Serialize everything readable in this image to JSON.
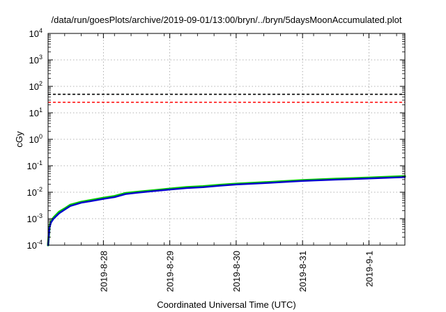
{
  "chart_data": {
    "type": "line",
    "title": "/data/run/goesPlots/archive/2019-09-01/13:00/bryn/../bryn/5daysMoonAccumulated.plot",
    "xlabel": "Coordinated Universal Time (UTC)",
    "ylabel": "cGy",
    "yscale": "log",
    "ylim": [
      0.0001,
      10000
    ],
    "xlim": [
      "2019-08-27T04:00",
      "2019-09-01T13:00"
    ],
    "grid": true,
    "legend": "none",
    "xticks": [
      {
        "x": "2019-08-28T00:00",
        "label": "2019-8-28"
      },
      {
        "x": "2019-08-29T00:00",
        "label": "2019-8-29"
      },
      {
        "x": "2019-08-30T00:00",
        "label": "2019-8-30"
      },
      {
        "x": "2019-08-31T00:00",
        "label": "2019-8-31"
      },
      {
        "x": "2019-09-01T00:00",
        "label": "2019-9-1"
      }
    ],
    "yticks": [
      {
        "value": 0.0001,
        "base": "10",
        "exp": "-4"
      },
      {
        "value": 0.001,
        "base": "10",
        "exp": "-3"
      },
      {
        "value": 0.01,
        "base": "10",
        "exp": "-2"
      },
      {
        "value": 0.1,
        "base": "10",
        "exp": "-1"
      },
      {
        "value": 1,
        "base": "10",
        "exp": "0"
      },
      {
        "value": 10,
        "base": "10",
        "exp": "1"
      },
      {
        "value": 100,
        "base": "10",
        "exp": "2"
      },
      {
        "value": 1000,
        "base": "10",
        "exp": "3"
      },
      {
        "value": 10000,
        "base": "10",
        "exp": "4"
      }
    ],
    "reference_lines": [
      {
        "y": 50,
        "color": "#000000",
        "style": "dashed"
      },
      {
        "y": 25,
        "color": "#ff0000",
        "style": "dashed"
      }
    ],
    "series": [
      {
        "color": "#00cc00",
        "x": [
          "2019-08-27T04:00",
          "2019-08-27T04:30",
          "2019-08-27T05:00",
          "2019-08-27T06:00",
          "2019-08-27T08:00",
          "2019-08-27T10:00",
          "2019-08-27T12:00",
          "2019-08-27T16:00",
          "2019-08-27T20:00",
          "2019-08-28T00:00",
          "2019-08-28T04:00",
          "2019-08-28T08:00",
          "2019-08-28T12:00",
          "2019-08-28T18:00",
          "2019-08-29T00:00",
          "2019-08-29T06:00",
          "2019-08-29T12:00",
          "2019-08-29T18:00",
          "2019-08-30T00:00",
          "2019-08-30T12:00",
          "2019-08-31T00:00",
          "2019-08-31T12:00",
          "2019-09-01T00:00",
          "2019-09-01T13:00"
        ],
        "y": [
          0.0001,
          0.0005,
          0.00075,
          0.0011,
          0.0018,
          0.0024,
          0.0033,
          0.0043,
          0.0051,
          0.0061,
          0.0071,
          0.0092,
          0.0102,
          0.0117,
          0.0135,
          0.0154,
          0.0166,
          0.0188,
          0.0208,
          0.024,
          0.0283,
          0.0318,
          0.0353,
          0.0402
        ]
      },
      {
        "color": "#0000cc",
        "x": [
          "2019-08-27T04:00",
          "2019-08-27T04:30",
          "2019-08-27T05:00",
          "2019-08-27T06:00",
          "2019-08-27T08:00",
          "2019-08-27T10:00",
          "2019-08-27T12:00",
          "2019-08-27T16:00",
          "2019-08-27T20:00",
          "2019-08-28T00:00",
          "2019-08-28T04:00",
          "2019-08-28T08:00",
          "2019-08-28T12:00",
          "2019-08-28T18:00",
          "2019-08-29T00:00",
          "2019-08-29T06:00",
          "2019-08-29T12:00",
          "2019-08-29T18:00",
          "2019-08-30T00:00",
          "2019-08-30T12:00",
          "2019-08-31T00:00",
          "2019-08-31T12:00",
          "2019-09-01T00:00",
          "2019-09-01T13:00"
        ],
        "y": [
          0.0001,
          0.00045,
          0.0007,
          0.001,
          0.0016,
          0.0022,
          0.003,
          0.004,
          0.0047,
          0.0056,
          0.0065,
          0.0085,
          0.0095,
          0.011,
          0.0126,
          0.0143,
          0.0155,
          0.0176,
          0.0195,
          0.0226,
          0.0266,
          0.0298,
          0.0331,
          0.0372
        ]
      }
    ]
  }
}
